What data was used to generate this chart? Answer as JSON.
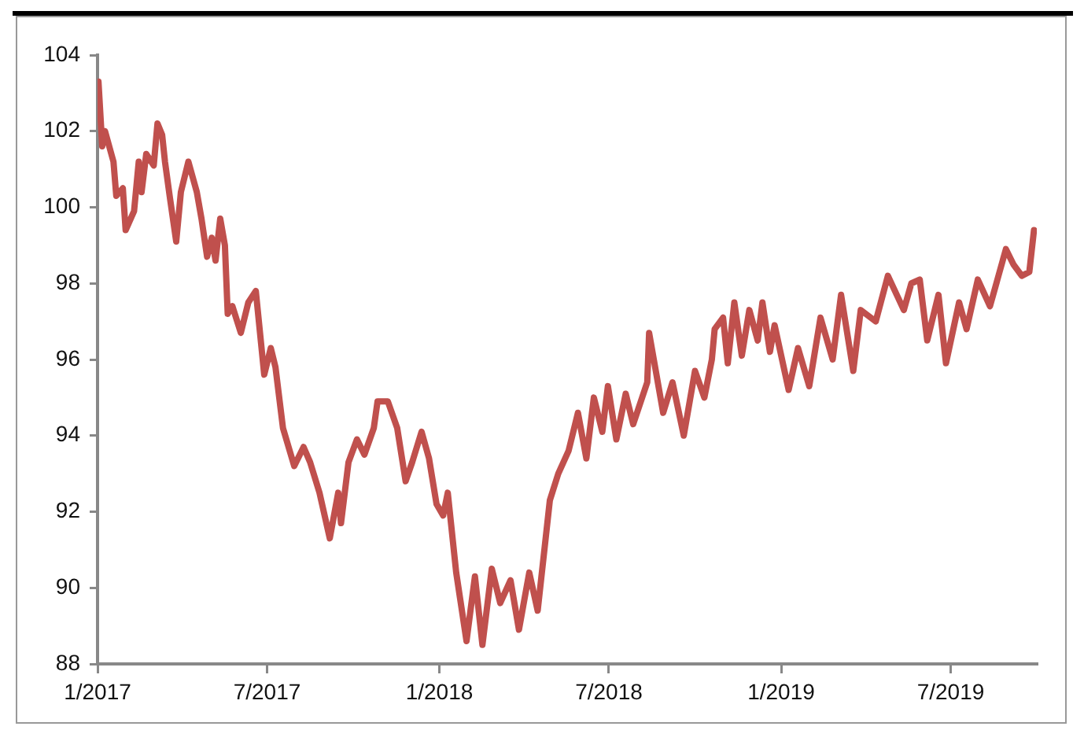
{
  "chart_data": {
    "type": "line",
    "grid": false,
    "legend": false,
    "marker": "none",
    "line_style": "solid",
    "xlim": [
      "2017-01-01",
      "2019-10-01"
    ],
    "xticks": [
      {
        "value": "2017-01-01",
        "label": "1/2017"
      },
      {
        "value": "2017-07-01",
        "label": "7/2017"
      },
      {
        "value": "2018-01-01",
        "label": "1/2018"
      },
      {
        "value": "2018-07-01",
        "label": "7/2018"
      },
      {
        "value": "2019-01-01",
        "label": "1/2019"
      },
      {
        "value": "2019-07-01",
        "label": "7/2019"
      }
    ],
    "ylim": [
      88,
      104
    ],
    "yticks": [
      88,
      90,
      92,
      94,
      96,
      98,
      100,
      102,
      104
    ],
    "x": [
      "2017-01-02",
      "2017-01-06",
      "2017-01-09",
      "2017-01-18",
      "2017-01-21",
      "2017-01-28",
      "2017-01-31",
      "2017-02-09",
      "2017-02-14",
      "2017-02-17",
      "2017-02-22",
      "2017-03-02",
      "2017-03-06",
      "2017-03-11",
      "2017-03-14",
      "2017-03-19",
      "2017-03-26",
      "2017-03-31",
      "2017-04-08",
      "2017-04-17",
      "2017-04-22",
      "2017-04-28",
      "2017-05-03",
      "2017-05-07",
      "2017-05-12",
      "2017-05-17",
      "2017-05-20",
      "2017-05-25",
      "2017-06-03",
      "2017-06-11",
      "2017-06-19",
      "2017-06-28",
      "2017-07-05",
      "2017-07-10",
      "2017-07-18",
      "2017-07-30",
      "2017-08-09",
      "2017-08-16",
      "2017-08-26",
      "2017-09-06",
      "2017-09-15",
      "2017-09-18",
      "2017-09-26",
      "2017-10-05",
      "2017-10-13",
      "2017-10-23",
      "2017-10-27",
      "2017-11-07",
      "2017-11-17",
      "2017-11-26",
      "2017-12-03",
      "2017-12-13",
      "2017-12-21",
      "2017-12-29",
      "2018-01-05",
      "2018-01-10",
      "2018-01-19",
      "2018-01-30",
      "2018-02-08",
      "2018-02-16",
      "2018-02-26",
      "2018-03-07",
      "2018-03-18",
      "2018-03-27",
      "2018-04-07",
      "2018-04-16",
      "2018-04-29",
      "2018-05-08",
      "2018-05-19",
      "2018-05-29",
      "2018-06-07",
      "2018-06-15",
      "2018-06-24",
      "2018-06-30",
      "2018-07-09",
      "2018-07-19",
      "2018-07-27",
      "2018-08-11",
      "2018-08-13",
      "2018-08-28",
      "2018-09-07",
      "2018-09-19",
      "2018-10-01",
      "2018-10-11",
      "2018-10-19",
      "2018-10-22",
      "2018-10-31",
      "2018-11-05",
      "2018-11-12",
      "2018-11-20",
      "2018-11-28",
      "2018-12-07",
      "2018-12-12",
      "2018-12-20",
      "2018-12-25",
      "2019-01-09",
      "2019-01-19",
      "2019-01-31",
      "2019-02-12",
      "2019-02-25",
      "2019-03-06",
      "2019-03-19",
      "2019-03-27",
      "2019-04-12",
      "2019-04-25",
      "2019-05-12",
      "2019-05-20",
      "2019-05-29",
      "2019-06-06",
      "2019-06-18",
      "2019-06-26",
      "2019-07-10",
      "2019-07-18",
      "2019-07-30",
      "2019-08-12",
      "2019-08-29",
      "2019-09-06",
      "2019-09-15",
      "2019-09-23",
      "2019-09-28"
    ],
    "series": [
      {
        "color": "#c0504d",
        "values": [
          103.3,
          101.6,
          102.0,
          101.2,
          100.3,
          100.5,
          99.4,
          99.9,
          101.2,
          100.4,
          101.4,
          101.1,
          102.2,
          101.9,
          101.2,
          100.3,
          99.1,
          100.4,
          101.2,
          100.4,
          99.7,
          98.7,
          99.2,
          98.6,
          99.7,
          99.0,
          97.2,
          97.4,
          96.7,
          97.5,
          97.8,
          95.6,
          96.3,
          95.8,
          94.2,
          93.2,
          93.7,
          93.3,
          92.5,
          91.3,
          92.5,
          91.7,
          93.3,
          93.9,
          93.5,
          94.2,
          94.9,
          94.9,
          94.2,
          92.8,
          93.3,
          94.1,
          93.4,
          92.2,
          91.9,
          92.5,
          90.4,
          88.6,
          90.3,
          88.5,
          90.5,
          89.6,
          90.2,
          88.9,
          90.4,
          89.4,
          92.3,
          93.0,
          93.6,
          94.6,
          93.4,
          95.0,
          94.1,
          95.3,
          93.9,
          95.1,
          94.3,
          95.4,
          96.7,
          94.6,
          95.4,
          94.0,
          95.7,
          95.0,
          96.0,
          96.8,
          97.1,
          95.9,
          97.5,
          96.1,
          97.3,
          96.5,
          97.5,
          96.2,
          96.9,
          95.2,
          96.3,
          95.3,
          97.1,
          96.0,
          97.7,
          95.7,
          97.3,
          97.0,
          98.2,
          97.3,
          98.0,
          98.1,
          96.5,
          97.7,
          95.9,
          97.5,
          96.8,
          98.1,
          97.4,
          98.9,
          98.5,
          98.2,
          98.3,
          99.4
        ]
      }
    ]
  }
}
